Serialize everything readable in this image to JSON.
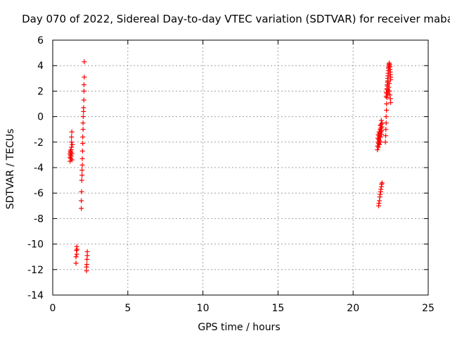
{
  "chart_data": {
    "type": "scatter",
    "title": "Day 070 of 2022, Sidereal Day-to-day VTEC variation (SDTVAR) for receiver maba",
    "xlabel": "GPS time / hours",
    "ylabel": "SDTVAR / TECUs",
    "xlim": [
      0,
      25
    ],
    "ylim": [
      -14,
      6
    ],
    "xticks": [
      0,
      5,
      10,
      15,
      20,
      25
    ],
    "yticks": [
      -14,
      -12,
      -10,
      -8,
      -6,
      -4,
      -2,
      0,
      2,
      4,
      6
    ],
    "grid": true,
    "marker": "plus",
    "series": [
      {
        "name": "SDTVAR",
        "color": "#ff0000",
        "x": [
          1.15,
          1.15,
          1.15,
          1.17,
          1.17,
          1.2,
          1.2,
          1.22,
          1.22,
          1.25,
          1.25,
          1.25,
          1.27,
          1.28,
          1.28,
          1.3,
          1.55,
          1.55,
          1.58,
          1.6,
          1.6,
          1.62,
          1.9,
          1.9,
          1.92,
          1.93,
          1.95,
          1.95,
          1.97,
          1.97,
          1.98,
          2.0,
          2.0,
          2.02,
          2.02,
          2.03,
          2.05,
          2.05,
          2.07,
          2.08,
          2.08,
          2.1,
          2.1,
          2.25,
          2.25,
          2.27,
          2.28,
          2.3,
          2.3,
          21.62,
          21.63,
          21.65,
          21.65,
          21.67,
          21.68,
          21.7,
          21.7,
          21.72,
          21.73,
          21.75,
          21.75,
          21.77,
          21.78,
          21.8,
          21.8,
          21.82,
          21.83,
          21.85,
          21.85,
          21.87,
          21.88,
          21.9,
          21.9,
          21.92,
          21.93,
          21.7,
          21.72,
          21.75,
          21.78,
          21.8,
          21.83,
          21.85,
          21.88,
          21.9,
          21.93,
          22.15,
          22.17,
          22.18,
          22.2,
          22.2,
          22.22,
          22.23,
          22.25,
          22.25,
          22.27,
          22.28,
          22.3,
          22.3,
          22.32,
          22.33,
          22.35,
          22.35,
          22.37,
          22.38,
          22.4,
          22.4,
          22.42,
          22.43,
          22.45,
          22.45,
          22.47,
          22.48,
          22.5,
          22.5,
          22.2,
          22.22,
          22.25,
          22.28,
          22.3,
          22.33,
          22.35,
          22.38,
          22.4,
          22.43,
          22.45,
          22.48,
          22.5
        ],
        "y": [
          -3.5,
          -3.2,
          -2.9,
          -2.7,
          -3.0,
          -3.3,
          -2.8,
          -2.6,
          -3.1,
          -2.4,
          -2.0,
          -1.6,
          -1.2,
          -2.9,
          -3.4,
          -2.2,
          -11.5,
          -11.0,
          -10.5,
          -10.2,
          -10.8,
          -10.4,
          -7.2,
          -6.6,
          -5.9,
          -5.0,
          -4.6,
          -4.2,
          -3.8,
          -3.3,
          -2.7,
          -2.1,
          -1.6,
          -1.0,
          -0.5,
          0.0,
          0.4,
          0.7,
          1.3,
          2.0,
          2.5,
          3.1,
          4.3,
          -12.1,
          -11.8,
          -11.6,
          -11.2,
          -10.9,
          -10.6,
          -2.6,
          -2.3,
          -2.0,
          -1.7,
          -1.4,
          -2.4,
          -2.1,
          -1.8,
          -1.5,
          -1.2,
          -2.2,
          -1.9,
          -1.6,
          -1.3,
          -1.0,
          -0.7,
          -2.0,
          -1.6,
          -1.2,
          -0.9,
          -0.6,
          -0.3,
          -1.4,
          -1.1,
          -0.8,
          -0.5,
          -7.0,
          -6.8,
          -6.6,
          -6.3,
          -6.1,
          -5.9,
          -5.7,
          -5.5,
          -5.3,
          -5.2,
          -2.0,
          -1.5,
          -1.0,
          -0.5,
          0.0,
          0.5,
          1.0,
          1.5,
          1.8,
          2.1,
          2.4,
          2.7,
          3.0,
          3.2,
          3.4,
          3.6,
          3.8,
          3.9,
          4.0,
          4.1,
          4.2,
          4.1,
          4.0,
          3.9,
          3.7,
          3.5,
          3.3,
          3.1,
          2.9,
          1.6,
          1.9,
          2.2,
          2.5,
          2.8,
          1.8,
          2.0,
          2.3,
          2.6,
          2.0,
          1.7,
          1.4,
          1.1
        ]
      }
    ]
  }
}
